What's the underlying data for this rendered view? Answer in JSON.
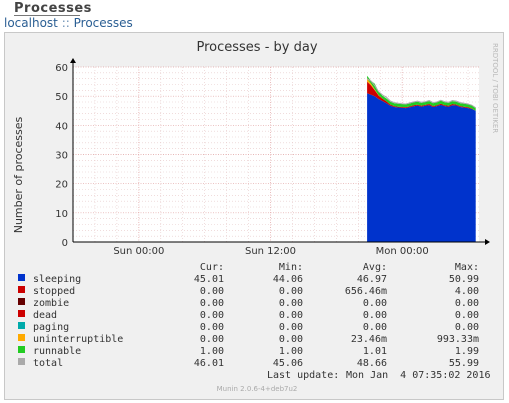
{
  "page": {
    "title": "Processes",
    "breadcrumb": [
      "localhost",
      "Processes"
    ],
    "breadcrumb_sep": "::"
  },
  "colors": {
    "sleeping": "#0033cc",
    "stopped": "#cc0000",
    "zombie": "#660000",
    "dead": "#cc0000",
    "paging": "#00aaaa",
    "uninterruptible": "#ffaa00",
    "runnable": "#22cc22",
    "total": "#aaaaaa"
  },
  "chart_data": {
    "type": "area",
    "title": "Processes - by day",
    "ylabel": "Number of processes",
    "xlabel": "",
    "watermark": "RRDTOOL / TOBI OETIKER",
    "ylim": [
      0,
      60
    ],
    "yticks": [
      0,
      10,
      20,
      30,
      40,
      50,
      60
    ],
    "x_range": [
      "Sun 00:00 -6h",
      "Mon 06:00 +1h"
    ],
    "xticks": [
      {
        "label": "Sun 00:00",
        "hours": 0
      },
      {
        "label": "Sun 12:00",
        "hours": 12
      },
      {
        "label": "Mon 00:00",
        "hours": 24
      }
    ],
    "x_domain_hours": [
      -6,
      31
    ],
    "data_start_hours": 20.8,
    "grid": true,
    "legend_columns": [
      "Cur:",
      "Min:",
      "Avg:",
      "Max:"
    ],
    "legend": [
      {
        "name": "sleeping",
        "cur": "45.01",
        "min": "44.06",
        "avg": "46.97",
        "max": "50.99"
      },
      {
        "name": "stopped",
        "cur": "0.00",
        "min": "0.00",
        "avg": "656.46m",
        "max": "4.00"
      },
      {
        "name": "zombie",
        "cur": "0.00",
        "min": "0.00",
        "avg": "0.00",
        "max": "0.00"
      },
      {
        "name": "dead",
        "cur": "0.00",
        "min": "0.00",
        "avg": "0.00",
        "max": "0.00"
      },
      {
        "name": "paging",
        "cur": "0.00",
        "min": "0.00",
        "avg": "0.00",
        "max": "0.00"
      },
      {
        "name": "uninterruptible",
        "cur": "0.00",
        "min": "0.00",
        "avg": "23.46m",
        "max": "993.33m"
      },
      {
        "name": "runnable",
        "cur": "1.00",
        "min": "1.00",
        "avg": "1.01",
        "max": "1.99"
      },
      {
        "name": "total",
        "cur": "46.01",
        "min": "45.06",
        "avg": "48.66",
        "max": "55.99"
      }
    ],
    "series": [
      {
        "name": "sleeping",
        "values": [
          50.99,
          50.5,
          50.0,
          49.0,
          48.3,
          47.6,
          46.7,
          46.3,
          46.1,
          46.0,
          45.9,
          46.2,
          46.5,
          46.8,
          46.4,
          46.7,
          46.9,
          46.3,
          46.6,
          47.0,
          46.6,
          46.4,
          46.9,
          46.8,
          46.3,
          46.1,
          45.9,
          45.6,
          45.01
        ]
      },
      {
        "name": "stopped",
        "values": [
          4.0,
          3.2,
          2.0,
          1.2,
          0.8,
          0.6,
          0.4,
          0.3,
          0.3,
          0.3,
          0.3,
          0.3,
          0.4,
          0.3,
          0.3,
          0.3,
          0.4,
          0.3,
          0.3,
          0.4,
          0.3,
          0.3,
          0.4,
          0.3,
          0.3,
          0.3,
          0.3,
          0.2,
          0.0
        ]
      },
      {
        "name": "uninterruptible",
        "values": [
          0.99,
          0.6,
          0.3,
          0.1,
          0.0,
          0.0,
          0.0,
          0.0,
          0.0,
          0.0,
          0.0,
          0.0,
          0.0,
          0.0,
          0.0,
          0.0,
          0.0,
          0.0,
          0.0,
          0.0,
          0.0,
          0.0,
          0.0,
          0.0,
          0.0,
          0.0,
          0.0,
          0.0,
          0.0
        ]
      },
      {
        "name": "runnable",
        "values": [
          1.0,
          1.0,
          1.99,
          1.2,
          1.0,
          1.0,
          1.0,
          1.0,
          1.0,
          1.0,
          1.0,
          1.0,
          1.0,
          1.0,
          1.0,
          1.0,
          1.0,
          1.0,
          1.0,
          1.0,
          1.0,
          1.0,
          1.0,
          1.0,
          1.0,
          1.0,
          1.0,
          1.0,
          1.0
        ]
      },
      {
        "name": "total",
        "values": [
          55.99,
          55.2,
          53.6,
          51.5,
          50.4,
          49.6,
          48.3,
          47.8,
          47.6,
          47.4,
          47.3,
          47.7,
          48.0,
          48.3,
          47.9,
          48.1,
          48.5,
          47.8,
          48.0,
          48.6,
          48.1,
          47.9,
          48.5,
          48.3,
          47.8,
          47.6,
          47.3,
          46.9,
          46.01
        ]
      }
    ],
    "last_update_label": "Last update:",
    "last_update": "Mon Jan  4 07:35:02 2016",
    "footer": "Munin 2.0.6-4+deb7u2"
  }
}
